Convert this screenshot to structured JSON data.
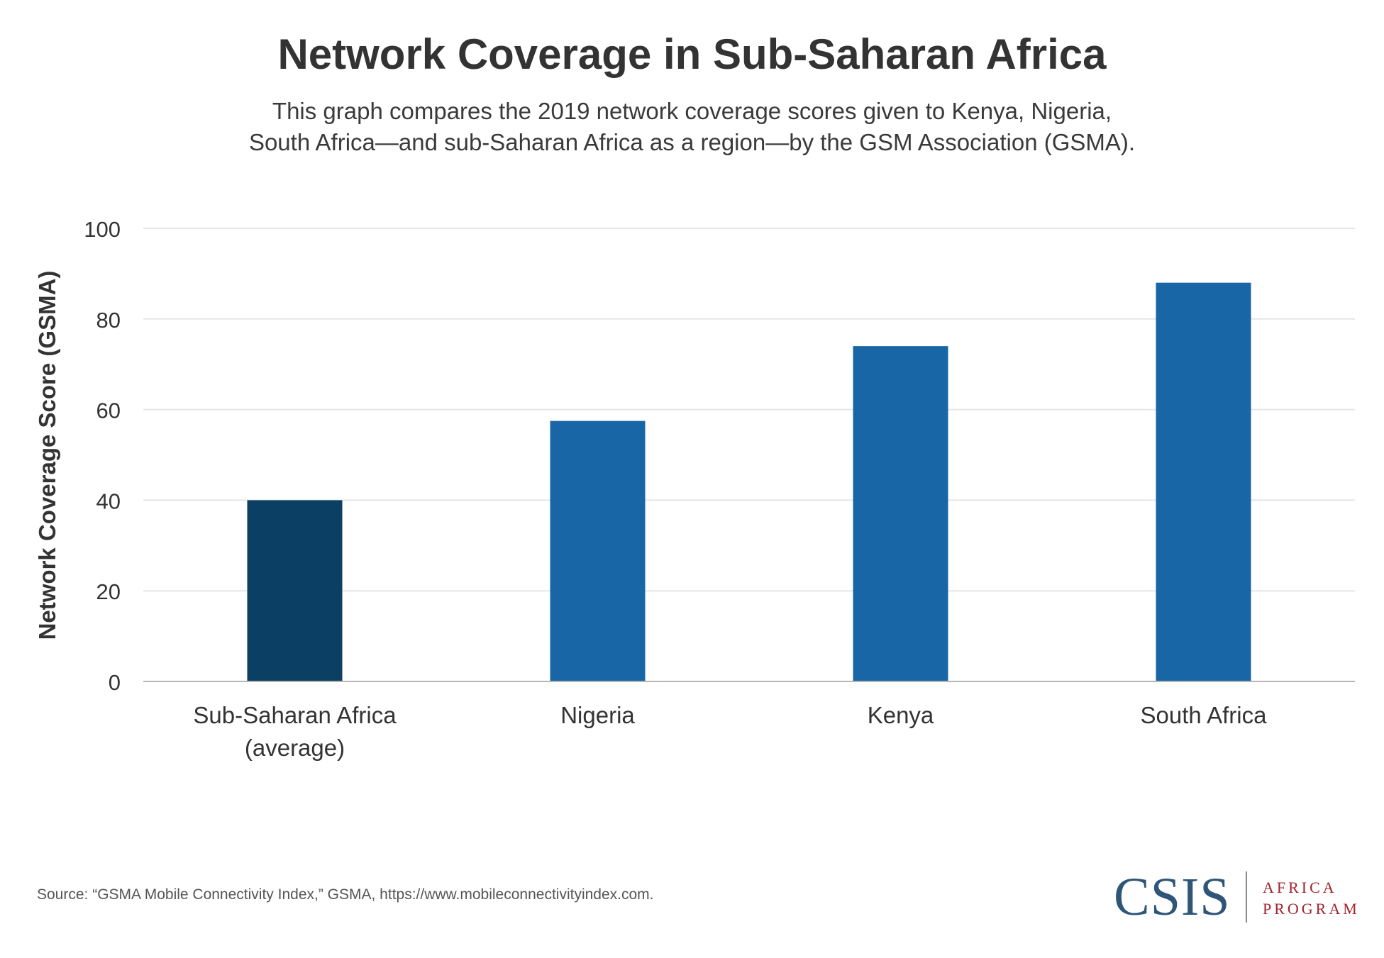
{
  "chart_data": {
    "type": "bar",
    "title": "Network Coverage in Sub-Saharan Africa",
    "subtitle_lines": [
      "This graph compares the 2019 network coverage scores given to Kenya, Nigeria,",
      "South Africa—and sub-Saharan Africa as a region—by the GSM Association (GSMA)."
    ],
    "ylabel": "Network Coverage Score (GSMA)",
    "xlabel": "",
    "ylim": [
      0,
      100
    ],
    "yticks": [
      0,
      20,
      40,
      60,
      80,
      100
    ],
    "grid": true,
    "categories": [
      [
        "Sub-Saharan Africa",
        "(average)"
      ],
      [
        "Nigeria"
      ],
      [
        "Kenya"
      ],
      [
        "South Africa"
      ]
    ],
    "values": [
      40,
      57.5,
      74,
      88
    ],
    "bar_colors": [
      "#0b3f63",
      "#1866a6",
      "#1866a6",
      "#1866a6"
    ]
  },
  "source": "Source: “GSMA Mobile Connectivity Index,” GSMA, https://www.mobileconnectivityindex.com.",
  "logo": {
    "name": "CSIS",
    "line1": "AFRICA",
    "line2": "PROGRAM",
    "colors": {
      "name": "#2f5678",
      "program": "#a3232d"
    }
  },
  "colors": {
    "text": "#333333",
    "grid": "#e6e6e6",
    "axis": "#b5b5b5"
  }
}
